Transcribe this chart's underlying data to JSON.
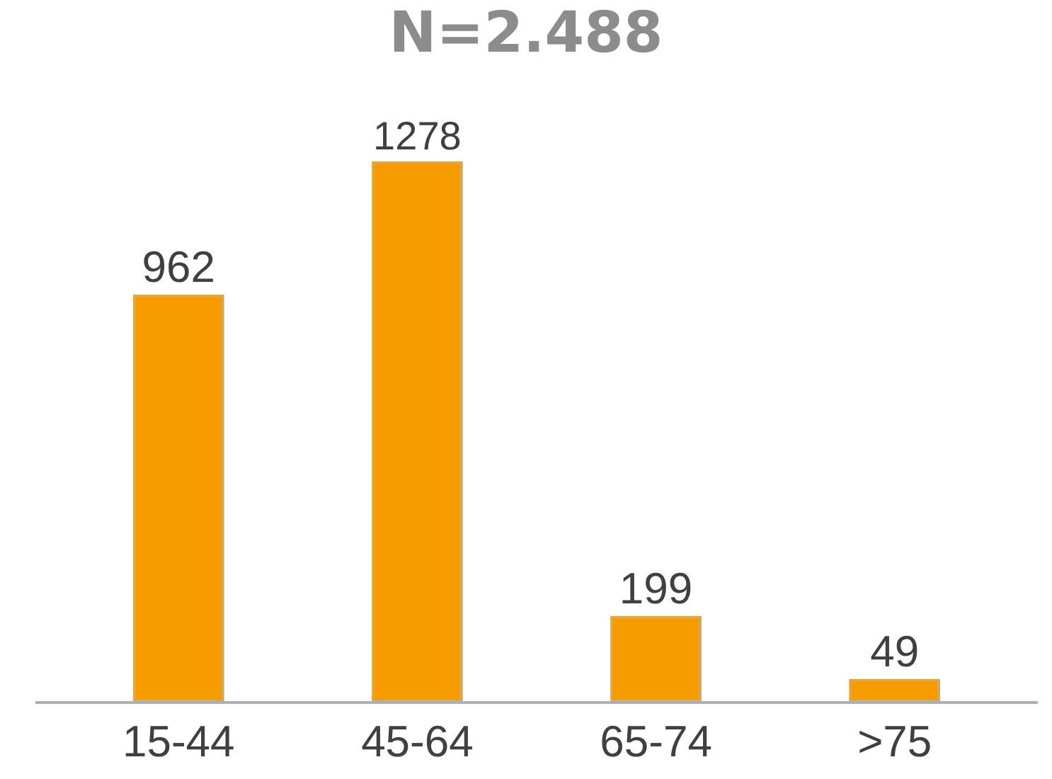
{
  "chart_data": {
    "type": "bar",
    "title": "N=2.488",
    "categories": [
      "15-44",
      "45-64",
      "65-74",
      ">75"
    ],
    "values": [
      962,
      1278,
      199,
      49
    ],
    "color": "#f59b00",
    "data_labels": true,
    "grid": false
  }
}
